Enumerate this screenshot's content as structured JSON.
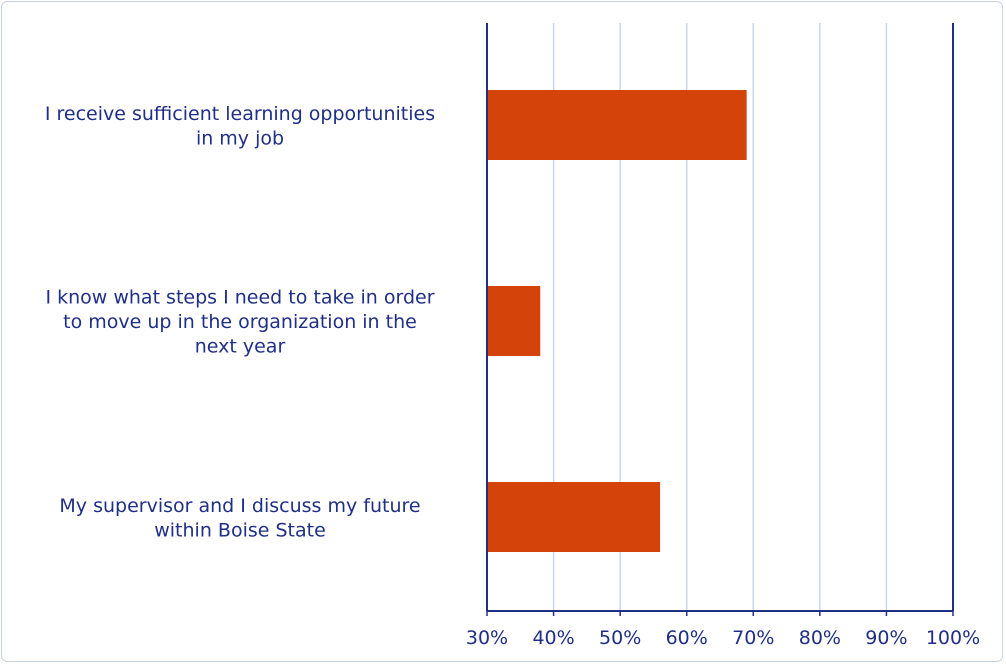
{
  "chart_data": {
    "type": "bar",
    "orientation": "horizontal",
    "categories": [
      [
        "I receive sufficient learning opportunities",
        "in my job"
      ],
      [
        "I know what steps I need to take in order",
        "to move up in the organization in the",
        "next year"
      ],
      [
        "My supervisor and I discuss my future",
        "within Boise State"
      ]
    ],
    "values": [
      69,
      38,
      56
    ],
    "xlim": [
      30,
      100
    ],
    "xticks": [
      30,
      40,
      50,
      60,
      70,
      80,
      90,
      100
    ],
    "tick_format": "{v}%",
    "grid": true,
    "title": "",
    "xlabel": "",
    "ylabel": "",
    "colors": {
      "bar": "#d4430a",
      "axis": "#1f2f86",
      "grid": "#c9d4ec",
      "text": "#1f2f86"
    }
  }
}
